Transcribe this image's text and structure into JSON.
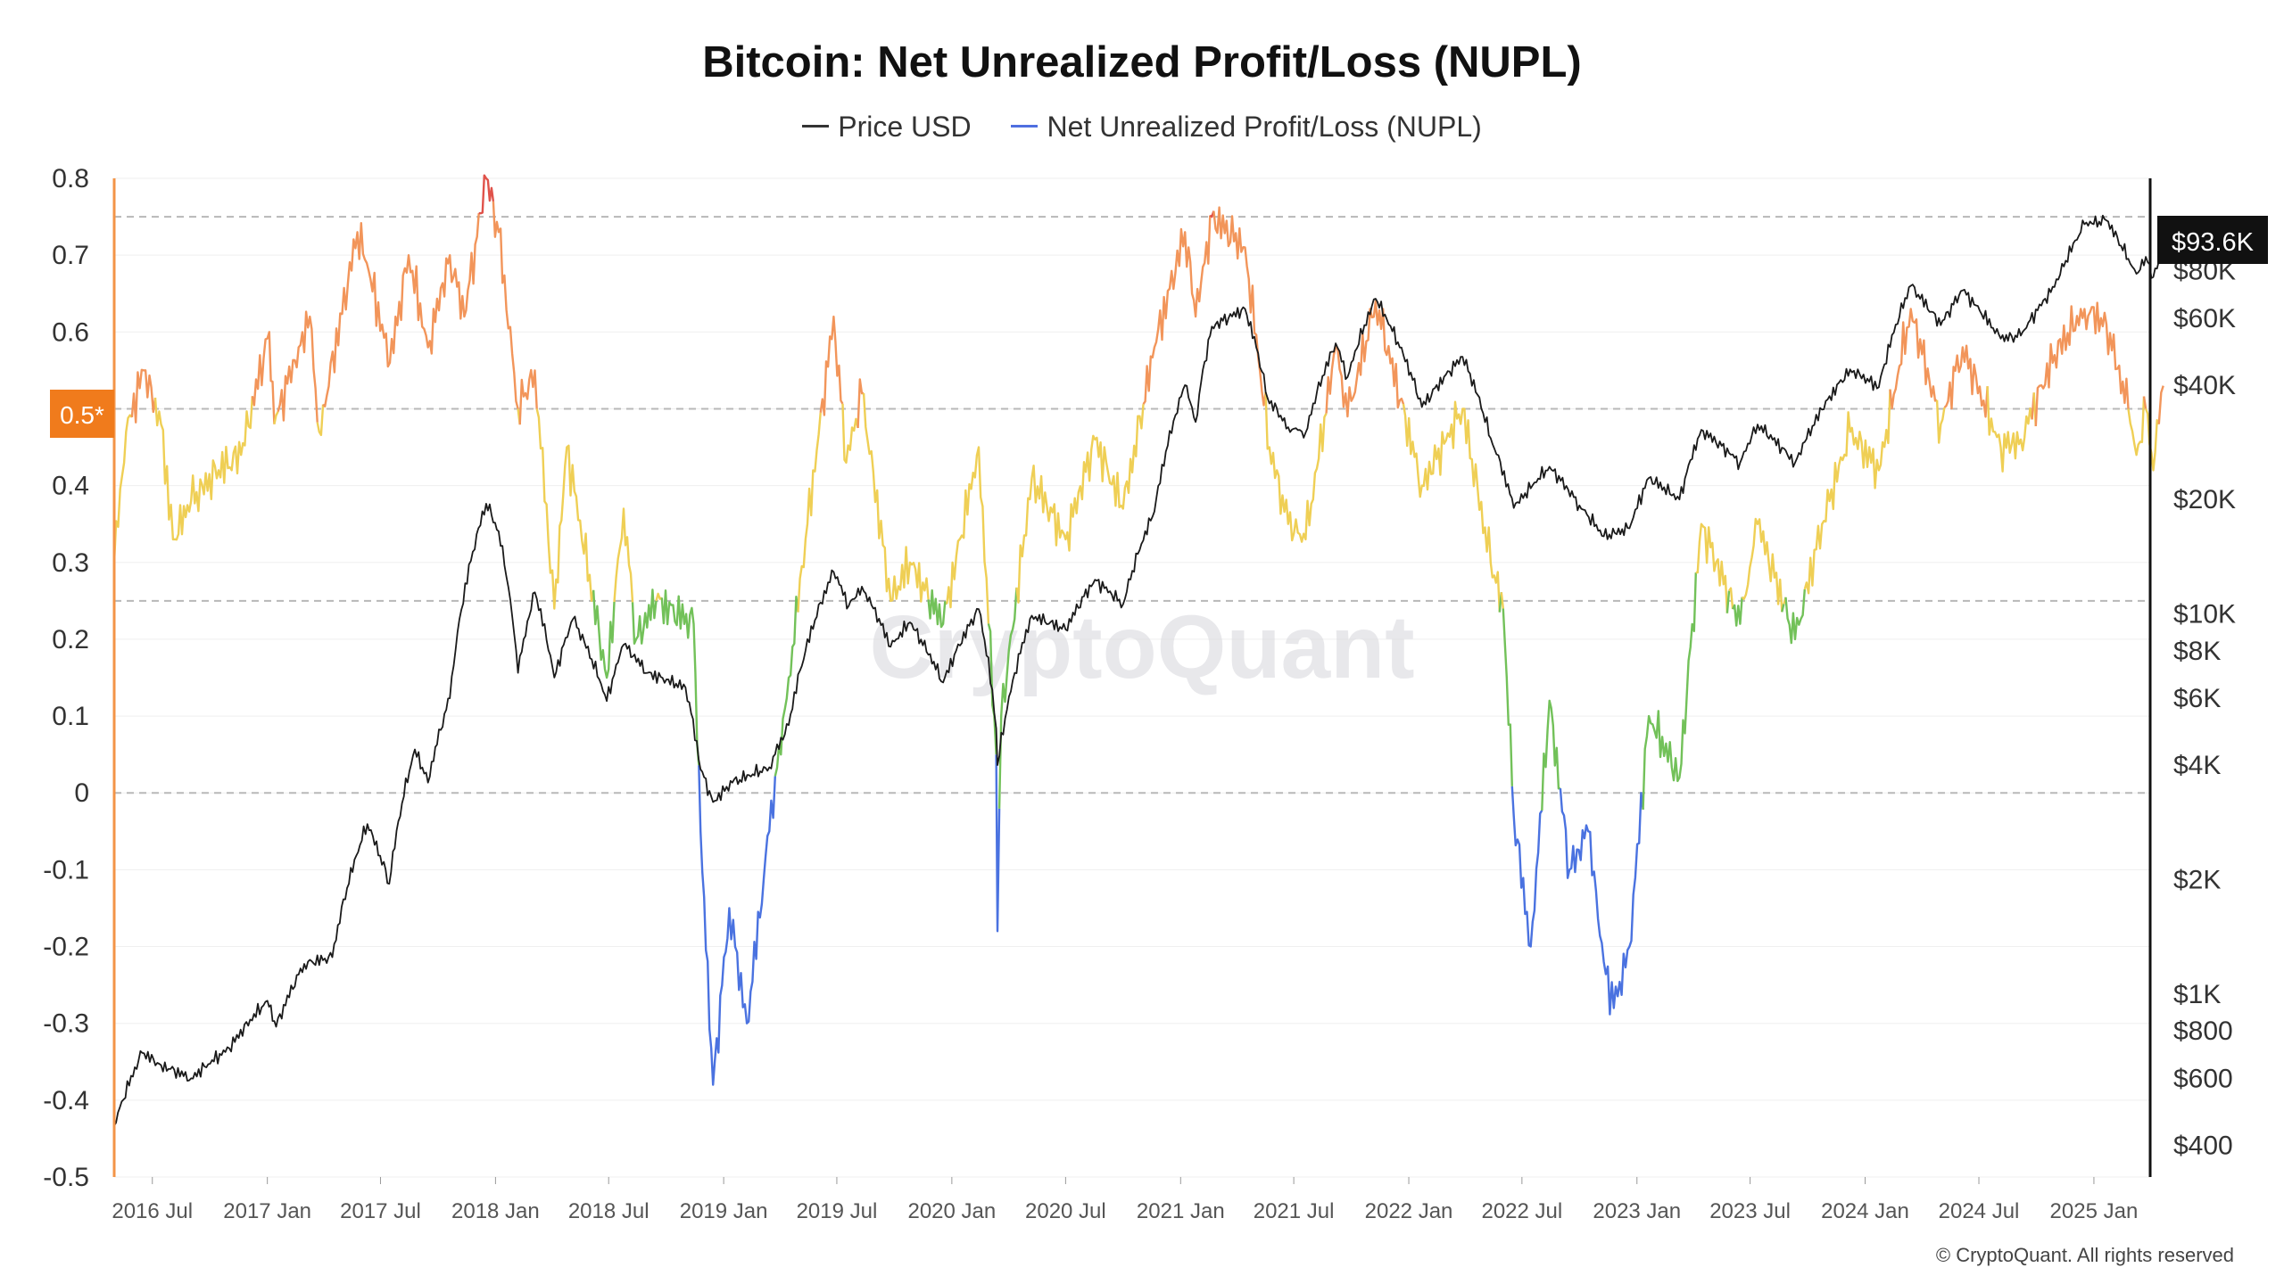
{
  "title": "Bitcoin: Net Unrealized Profit/Loss (NUPL)",
  "legend": [
    {
      "label": "Price USD",
      "color": "#333333"
    },
    {
      "label": "Net Unrealized Profit/Loss (NUPL)",
      "color": "#4f6fe0"
    }
  ],
  "watermark": "CryptoQuant",
  "copyright": "© CryptoQuant. All rights reserved",
  "left_marker_label": "0.5*",
  "right_marker_label": "$93.6K",
  "colors": {
    "price_line": "#1a1a1a",
    "nupl_capitulation": "#4a72e0",
    "nupl_hope": "#72c159",
    "nupl_optimism": "#efcf55",
    "nupl_belief": "#f2955a",
    "nupl_euphoria": "#e0524a",
    "left_axis": "#f39447",
    "marker_bg": "#f07b1c",
    "price_marker_bg": "#111111"
  },
  "chart_data": {
    "type": "line",
    "x_ticks": [
      "2016 Jul",
      "2017 Jan",
      "2017 Jul",
      "2018 Jan",
      "2018 Jul",
      "2019 Jan",
      "2019 Jul",
      "2020 Jan",
      "2020 Jul",
      "2021 Jan",
      "2021 Jul",
      "2022 Jan",
      "2022 Jul",
      "2023 Jan",
      "2023 Jul",
      "2024 Jan",
      "2024 Jul",
      "2025 Jan"
    ],
    "x_range": [
      "2016-05-01",
      "2025-04-01"
    ],
    "y_left": {
      "ticks": [
        "0.8",
        "0.7",
        "0.6",
        "0.5",
        "0.4",
        "0.3",
        "0.2",
        "0.1",
        "0",
        "-0.1",
        "-0.2",
        "-0.3",
        "-0.4",
        "-0.5"
      ],
      "range": [
        -0.5,
        0.8
      ]
    },
    "y_right": {
      "scale": "log",
      "ticks": [
        {
          "label": "$80K",
          "value": 80000
        },
        {
          "label": "$60K",
          "value": 60000
        },
        {
          "label": "$40K",
          "value": 40000
        },
        {
          "label": "$20K",
          "value": 20000
        },
        {
          "label": "$10K",
          "value": 10000
        },
        {
          "label": "$8K",
          "value": 8000
        },
        {
          "label": "$6K",
          "value": 6000
        },
        {
          "label": "$4K",
          "value": 4000
        },
        {
          "label": "$2K",
          "value": 2000
        },
        {
          "label": "$1K",
          "value": 1000
        },
        {
          "label": "$800",
          "value": 800
        },
        {
          "label": "$600",
          "value": 600
        },
        {
          "label": "$400",
          "value": 400
        }
      ],
      "range": [
        330,
        140000
      ]
    },
    "reference_lines": [
      0.75,
      0.5,
      0.25,
      0
    ],
    "zone_thresholds": {
      "capitulation_below": 0,
      "hope_below": 0.25,
      "optimism_below": 0.5,
      "belief_below": 0.75
    },
    "series": [
      {
        "name": "Price USD",
        "points": [
          [
            "2016-05-01",
            450
          ],
          [
            "2016-06-15",
            700
          ],
          [
            "2016-07-15",
            650
          ],
          [
            "2016-09-01",
            600
          ],
          [
            "2016-11-01",
            720
          ],
          [
            "2017-01-01",
            960
          ],
          [
            "2017-01-15",
            820
          ],
          [
            "2017-03-01",
            1200
          ],
          [
            "2017-04-15",
            1250
          ],
          [
            "2017-06-10",
            2800
          ],
          [
            "2017-07-15",
            1950
          ],
          [
            "2017-08-25",
            4400
          ],
          [
            "2017-09-15",
            3600
          ],
          [
            "2017-10-20",
            6000
          ],
          [
            "2017-12-17",
            19500
          ],
          [
            "2018-01-06",
            16500
          ],
          [
            "2018-02-06",
            7000
          ],
          [
            "2018-03-05",
            11400
          ],
          [
            "2018-04-05",
            6800
          ],
          [
            "2018-05-05",
            9700
          ],
          [
            "2018-06-28",
            5900
          ],
          [
            "2018-07-25",
            8300
          ],
          [
            "2018-09-01",
            7000
          ],
          [
            "2018-11-01",
            6400
          ],
          [
            "2018-11-25",
            3900
          ],
          [
            "2018-12-15",
            3200
          ],
          [
            "2019-01-15",
            3600
          ],
          [
            "2019-03-15",
            3950
          ],
          [
            "2019-04-15",
            5100
          ],
          [
            "2019-06-26",
            12900
          ],
          [
            "2019-07-20",
            10500
          ],
          [
            "2019-08-10",
            11800
          ],
          [
            "2019-09-25",
            8200
          ],
          [
            "2019-10-26",
            9500
          ],
          [
            "2019-12-18",
            6600
          ],
          [
            "2020-02-13",
            10300
          ],
          [
            "2020-03-12",
            5000
          ],
          [
            "2020-03-14",
            4000
          ],
          [
            "2020-05-08",
            9900
          ],
          [
            "2020-07-01",
            9100
          ],
          [
            "2020-08-17",
            12300
          ],
          [
            "2020-10-01",
            10600
          ],
          [
            "2020-11-20",
            18600
          ],
          [
            "2021-01-08",
            40000
          ],
          [
            "2021-01-25",
            32000
          ],
          [
            "2021-02-20",
            57000
          ],
          [
            "2021-04-14",
            63500
          ],
          [
            "2021-05-20",
            37000
          ],
          [
            "2021-06-22",
            31000
          ],
          [
            "2021-07-20",
            30000
          ],
          [
            "2021-09-06",
            51500
          ],
          [
            "2021-09-25",
            42000
          ],
          [
            "2021-11-09",
            67500
          ],
          [
            "2022-01-22",
            35000
          ],
          [
            "2022-03-28",
            47500
          ],
          [
            "2022-05-12",
            29000
          ],
          [
            "2022-06-18",
            19000
          ],
          [
            "2022-08-14",
            24400
          ],
          [
            "2022-10-01",
            19300
          ],
          [
            "2022-11-09",
            16000
          ],
          [
            "2022-12-20",
            16800
          ],
          [
            "2023-01-20",
            22800
          ],
          [
            "2023-03-10",
            20000
          ],
          [
            "2023-04-14",
            30500
          ],
          [
            "2023-06-15",
            25000
          ],
          [
            "2023-07-13",
            31500
          ],
          [
            "2023-09-11",
            25000
          ],
          [
            "2023-10-24",
            34500
          ],
          [
            "2023-12-08",
            44000
          ],
          [
            "2024-01-23",
            39500
          ],
          [
            "2024-03-14",
            73000
          ],
          [
            "2024-05-01",
            57500
          ],
          [
            "2024-06-05",
            71000
          ],
          [
            "2024-08-05",
            53000
          ],
          [
            "2024-09-06",
            54000
          ],
          [
            "2024-10-30",
            72500
          ],
          [
            "2024-12-17",
            106000
          ],
          [
            "2025-01-21",
            108500
          ],
          [
            "2025-02-25",
            86000
          ],
          [
            "2025-03-10",
            78500
          ],
          [
            "2025-03-25",
            87000
          ],
          [
            "2025-04-06",
            77000
          ],
          [
            "2025-04-15",
            85000
          ],
          [
            "2025-04-22",
            93600
          ]
        ]
      },
      {
        "name": "Net Unrealized Profit/Loss (NUPL)",
        "points": [
          [
            "2016-05-01",
            0.3
          ],
          [
            "2016-05-20",
            0.47
          ],
          [
            "2016-06-17",
            0.55
          ],
          [
            "2016-07-15",
            0.48
          ],
          [
            "2016-08-03",
            0.33
          ],
          [
            "2016-09-01",
            0.38
          ],
          [
            "2016-10-15",
            0.42
          ],
          [
            "2016-11-20",
            0.44
          ],
          [
            "2017-01-04",
            0.6
          ],
          [
            "2017-01-12",
            0.48
          ],
          [
            "2017-02-20",
            0.58
          ],
          [
            "2017-03-10",
            0.62
          ],
          [
            "2017-03-25",
            0.47
          ],
          [
            "2017-05-25",
            0.73
          ],
          [
            "2017-06-12",
            0.68
          ],
          [
            "2017-07-16",
            0.56
          ],
          [
            "2017-08-15",
            0.7
          ],
          [
            "2017-09-15",
            0.58
          ],
          [
            "2017-10-20",
            0.7
          ],
          [
            "2017-11-12",
            0.62
          ],
          [
            "2017-12-17",
            0.8
          ],
          [
            "2018-01-06",
            0.73
          ],
          [
            "2018-02-06",
            0.5
          ],
          [
            "2018-03-05",
            0.55
          ],
          [
            "2018-04-05",
            0.24
          ],
          [
            "2018-04-25",
            0.45
          ],
          [
            "2018-06-28",
            0.15
          ],
          [
            "2018-07-25",
            0.37
          ],
          [
            "2018-08-14",
            0.2
          ],
          [
            "2018-09-15",
            0.25
          ],
          [
            "2018-11-14",
            0.22
          ],
          [
            "2018-11-25",
            -0.05
          ],
          [
            "2018-12-15",
            -0.38
          ],
          [
            "2019-01-10",
            -0.15
          ],
          [
            "2019-02-07",
            -0.3
          ],
          [
            "2019-03-15",
            -0.05
          ],
          [
            "2019-04-15",
            0.15
          ],
          [
            "2019-05-15",
            0.35
          ],
          [
            "2019-06-26",
            0.62
          ],
          [
            "2019-07-16",
            0.43
          ],
          [
            "2019-08-10",
            0.52
          ],
          [
            "2019-09-25",
            0.25
          ],
          [
            "2019-10-26",
            0.3
          ],
          [
            "2019-12-18",
            0.22
          ],
          [
            "2020-02-13",
            0.45
          ],
          [
            "2020-03-12",
            0.05
          ],
          [
            "2020-03-14",
            -0.18
          ],
          [
            "2020-03-20",
            0.1
          ],
          [
            "2020-05-08",
            0.41
          ],
          [
            "2020-07-01",
            0.33
          ],
          [
            "2020-08-17",
            0.46
          ],
          [
            "2020-10-01",
            0.37
          ],
          [
            "2020-11-20",
            0.58
          ],
          [
            "2021-01-08",
            0.73
          ],
          [
            "2021-01-25",
            0.62
          ],
          [
            "2021-02-20",
            0.75
          ],
          [
            "2021-04-14",
            0.71
          ],
          [
            "2021-05-23",
            0.45
          ],
          [
            "2021-06-22",
            0.35
          ],
          [
            "2021-07-20",
            0.33
          ],
          [
            "2021-09-06",
            0.58
          ],
          [
            "2021-09-25",
            0.49
          ],
          [
            "2021-11-09",
            0.64
          ],
          [
            "2022-01-22",
            0.4
          ],
          [
            "2022-03-28",
            0.5
          ],
          [
            "2022-05-12",
            0.3
          ],
          [
            "2022-06-01",
            0.24
          ],
          [
            "2022-06-18",
            -0.03
          ],
          [
            "2022-07-15",
            -0.2
          ],
          [
            "2022-08-14",
            0.12
          ],
          [
            "2022-09-15",
            -0.1
          ],
          [
            "2022-10-15",
            -0.05
          ],
          [
            "2022-11-09",
            -0.22
          ],
          [
            "2022-11-25",
            -0.28
          ],
          [
            "2022-12-20",
            -0.2
          ],
          [
            "2023-01-20",
            0.1
          ],
          [
            "2023-03-10",
            0.02
          ],
          [
            "2023-04-14",
            0.35
          ],
          [
            "2023-06-15",
            0.22
          ],
          [
            "2023-07-13",
            0.35
          ],
          [
            "2023-09-11",
            0.2
          ],
          [
            "2023-10-24",
            0.35
          ],
          [
            "2023-12-08",
            0.47
          ],
          [
            "2024-01-23",
            0.42
          ],
          [
            "2024-03-14",
            0.63
          ],
          [
            "2024-05-01",
            0.48
          ],
          [
            "2024-06-05",
            0.58
          ],
          [
            "2024-08-05",
            0.45
          ],
          [
            "2024-09-06",
            0.46
          ],
          [
            "2024-10-30",
            0.57
          ],
          [
            "2024-12-17",
            0.63
          ],
          [
            "2025-01-21",
            0.61
          ],
          [
            "2025-02-25",
            0.5
          ],
          [
            "2025-03-10",
            0.44
          ],
          [
            "2025-03-25",
            0.5
          ],
          [
            "2025-04-06",
            0.42
          ],
          [
            "2025-04-15",
            0.48
          ],
          [
            "2025-04-22",
            0.53
          ]
        ]
      }
    ]
  }
}
